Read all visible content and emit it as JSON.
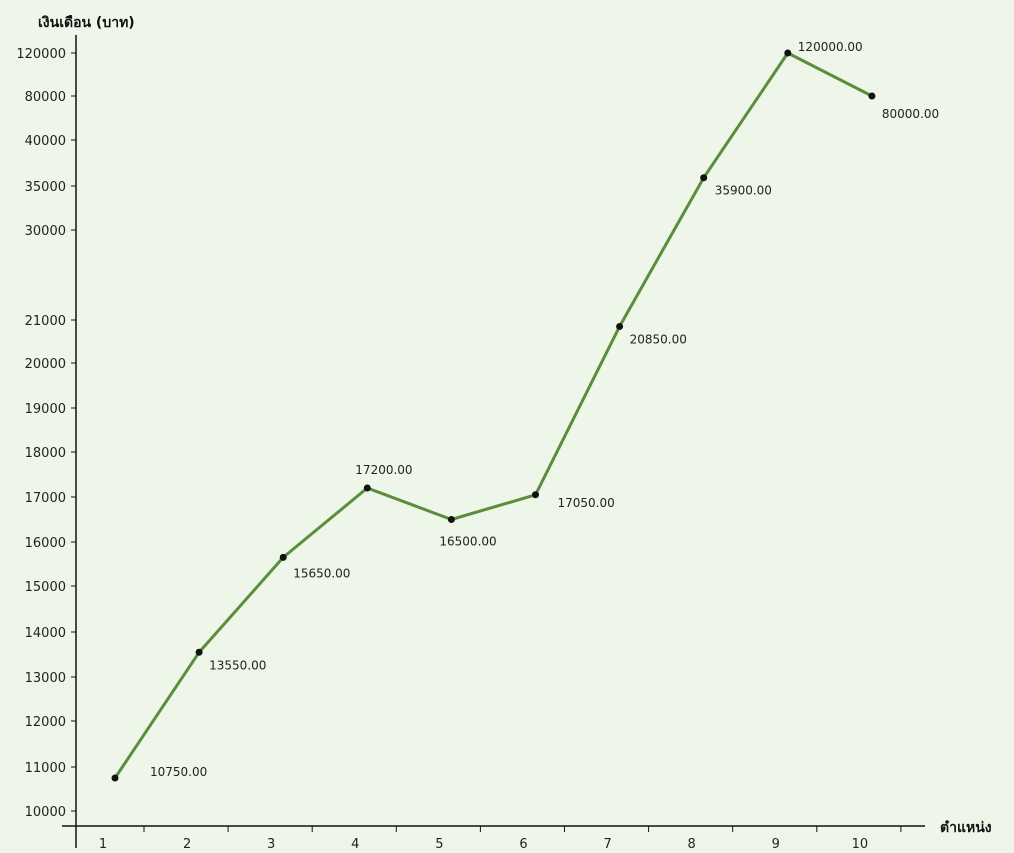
{
  "chart_data": {
    "type": "line",
    "title": "",
    "xlabel": "ตำแหน่ง",
    "ylabel": "เงินเดือน (บาท)",
    "x": [
      1,
      2,
      3,
      4,
      5,
      6,
      7,
      8,
      9,
      10
    ],
    "x_tick_labels": [
      "1",
      "2",
      "3",
      "4",
      "5",
      "6",
      "7",
      "8",
      "9",
      "10"
    ],
    "y_tick_labels": [
      "10000",
      "11000",
      "12000",
      "13000",
      "14000",
      "15000",
      "16000",
      "17000",
      "18000",
      "19000",
      "20000",
      "21000",
      "30000",
      "35000",
      "40000",
      "80000",
      "120000"
    ],
    "y_tick_values": [
      10000,
      11000,
      12000,
      13000,
      14000,
      15000,
      16000,
      17000,
      18000,
      19000,
      20000,
      21000,
      30000,
      35000,
      40000,
      80000,
      120000
    ],
    "y_scale": "irregular-category",
    "grid": false,
    "series": [
      {
        "values": [
          10750,
          13550,
          15650,
          17200,
          16500,
          17050,
          20850,
          35900,
          120000,
          80000
        ],
        "data_labels": [
          "10750.00",
          "13550.00",
          "15650.00",
          "17200.00",
          "16500.00",
          "17050.00",
          "20850.00",
          "35900.00",
          "120000.00",
          "80000.00"
        ],
        "color": "#5b8d3a"
      }
    ]
  }
}
